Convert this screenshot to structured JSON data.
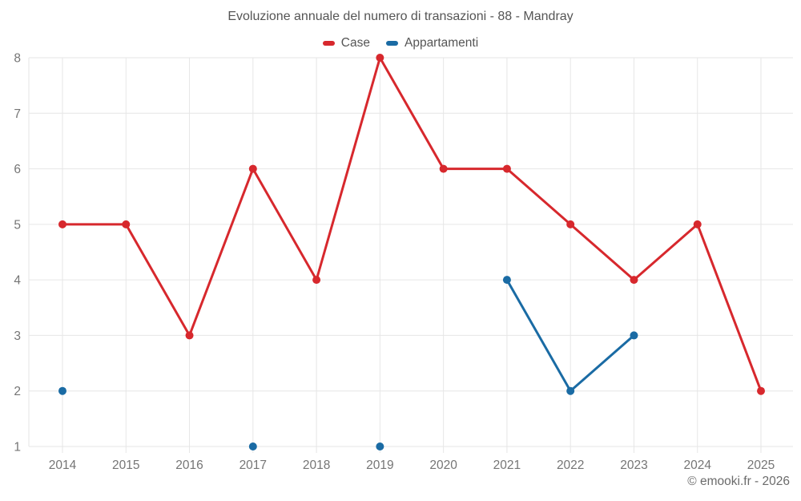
{
  "chart_data": {
    "type": "line",
    "title": "Evoluzione annuale del numero di transazioni - 88 - Mandray",
    "categories": [
      "2014",
      "2015",
      "2016",
      "2017",
      "2018",
      "2019",
      "2020",
      "2021",
      "2022",
      "2023",
      "2024",
      "2025"
    ],
    "series": [
      {
        "name": "Case",
        "color": "#d7282d",
        "values": [
          5,
          5,
          3,
          6,
          4,
          8,
          6,
          6,
          5,
          4,
          5,
          2
        ]
      },
      {
        "name": "Appartamenti",
        "color": "#1a6ba4",
        "values": [
          2,
          null,
          null,
          1,
          null,
          1,
          null,
          4,
          2,
          3,
          null,
          null
        ]
      }
    ],
    "xlabel": "",
    "ylabel": "",
    "ylim": [
      1,
      8
    ],
    "yticks": [
      1,
      2,
      3,
      4,
      5,
      6,
      7,
      8
    ],
    "grid": true,
    "legend_position": "top"
  },
  "footer": {
    "credit": "© emooki.fr - 2026"
  },
  "style": {
    "grid_color": "#e6e6e6",
    "axis_label_color": "#757575",
    "title_color": "#555555",
    "credit_color": "#6b6b6b"
  }
}
